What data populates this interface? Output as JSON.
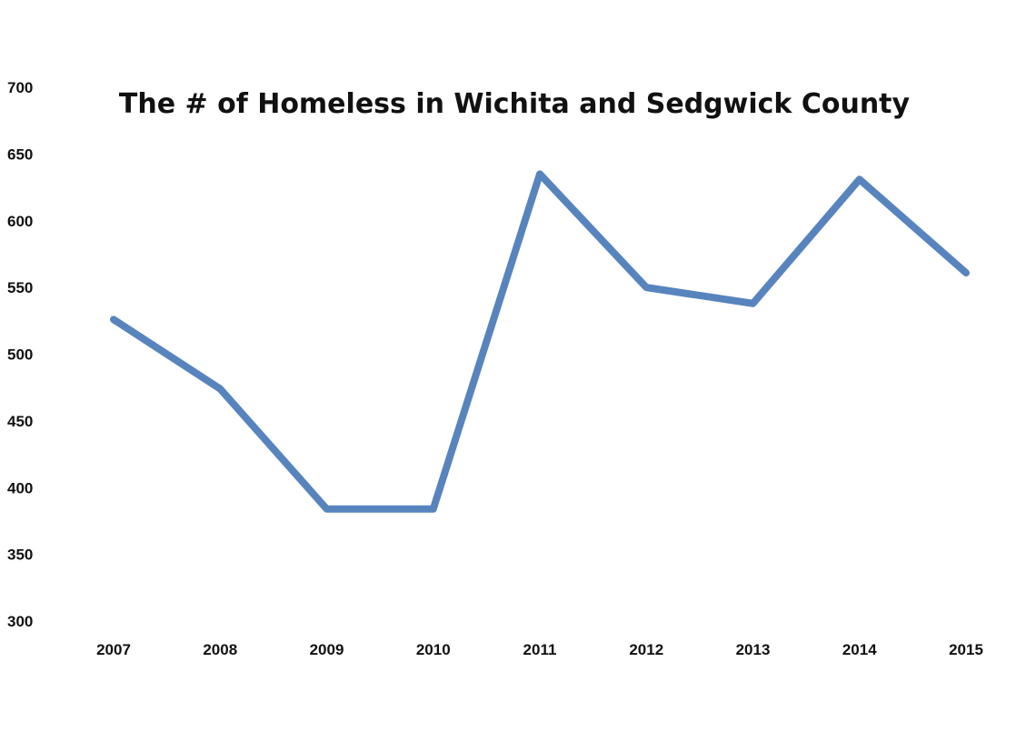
{
  "chart_data": {
    "type": "line",
    "title": "The # of Homeless in Wichita and Sedgwick County",
    "xlabel": "",
    "ylabel": "",
    "categories": [
      "2007",
      "2008",
      "2009",
      "2010",
      "2011",
      "2012",
      "2013",
      "2014",
      "2015"
    ],
    "series": [
      {
        "values": [
          526,
          474,
          384,
          384,
          635,
          550,
          538,
          631,
          561
        ]
      }
    ],
    "ylim": [
      300,
      700
    ],
    "yticks": [
      300,
      350,
      400,
      450,
      500,
      550,
      600,
      650,
      700
    ],
    "grid": false,
    "legend": "none",
    "colors": {
      "line": "#5884BE"
    }
  }
}
